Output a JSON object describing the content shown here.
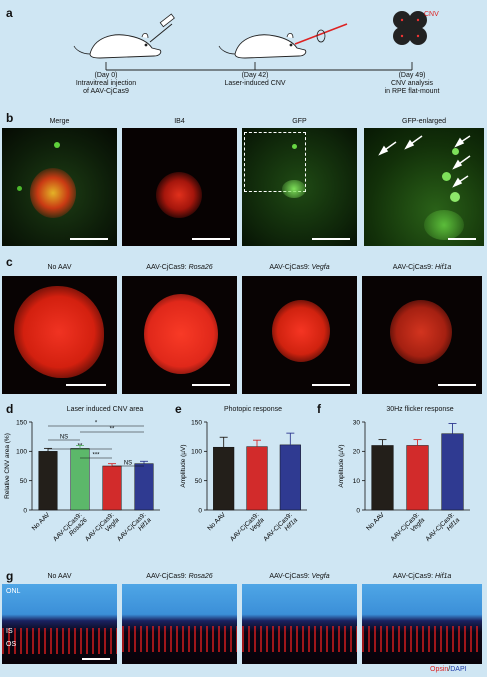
{
  "panels": {
    "a": "a",
    "b": "b",
    "c": "c",
    "d": "d",
    "e": "e",
    "f": "f",
    "g": "g"
  },
  "timeline": {
    "cnv_label": "CNV",
    "steps": [
      {
        "day": "(Day 0)",
        "line1": "Intravitreal injection",
        "line2": "of AAV-CjCas9"
      },
      {
        "day": "(Day 42)",
        "line1": "Laser-induced CNV",
        "line2": ""
      },
      {
        "day": "(Day 49)",
        "line1": "CNV analysis",
        "line2": "in RPE flat-mount"
      }
    ]
  },
  "panel_b": {
    "titles": [
      "Merge",
      "IB4",
      "GFP",
      "GFP-enlarged"
    ]
  },
  "panel_c": {
    "titles": [
      {
        "prefix": "No AAV",
        "gene": ""
      },
      {
        "prefix": "AAV-CjCas9: ",
        "gene": "Rosa26"
      },
      {
        "prefix": "AAV-CjCas9: ",
        "gene": "Vegfa"
      },
      {
        "prefix": "AAV-CjCas9: ",
        "gene": "Hif1a"
      }
    ]
  },
  "panel_g": {
    "titles": [
      {
        "prefix": "No AAV",
        "gene": ""
      },
      {
        "prefix": "AAV-CjCas9: ",
        "gene": "Rosa26"
      },
      {
        "prefix": "AAV-CjCas9: ",
        "gene": "Vegfa"
      },
      {
        "prefix": "AAV-CjCas9: ",
        "gene": "Hif1a"
      }
    ],
    "layers": [
      "ONL",
      "IS",
      "OS"
    ],
    "legend_red": "Opsin",
    "legend_sep": "/",
    "legend_blue": "DAPI"
  },
  "chart_data": [
    {
      "type": "bar",
      "title": "Laser induced CNV area",
      "ylabel": "Relative CNV area (%)",
      "ylim": [
        0,
        150
      ],
      "yticks": [
        0,
        50,
        100,
        150
      ],
      "categories": [
        "No AAV",
        "AAV-CjCas9: Rosa26",
        "AAV-CjCas9: Vegfa",
        "AAV-CjCas9: Hif1a"
      ],
      "category_lines": [
        [
          "No AAV"
        ],
        [
          "AAV-CjCas9:",
          "Rosa26"
        ],
        [
          "AAV-CjCas9:",
          "Vegfa"
        ],
        [
          "AAV-CjCas9:",
          "Hif1a"
        ]
      ],
      "values": [
        100,
        105,
        75,
        79
      ],
      "errors": [
        5,
        5,
        4,
        4
      ],
      "colors": [
        "#231f1a",
        "#5cb86a",
        "#d22b2b",
        "#2f3a91"
      ],
      "significance": [
        {
          "from": 0,
          "to": 3,
          "label": "*"
        },
        {
          "from": 1,
          "to": 3,
          "label": "**"
        },
        {
          "from": 0,
          "to": 1,
          "label": "NS"
        },
        {
          "from": 0,
          "to": 2,
          "label": "**"
        },
        {
          "from": 1,
          "to": 2,
          "label": "***"
        },
        {
          "from": 2,
          "to": 3,
          "label": "NS"
        }
      ]
    },
    {
      "type": "bar",
      "title": "Photopic response",
      "ylabel": "Amplitude (µV)",
      "ylim": [
        0,
        150
      ],
      "yticks": [
        0,
        50,
        100,
        150
      ],
      "categories": [
        "No AAV",
        "AAV-CjCas9: Vegfa",
        "AAV-CjCas9: Hif1a"
      ],
      "category_lines": [
        [
          "No AAV"
        ],
        [
          "AAV-CjCas9:",
          "Vegfa"
        ],
        [
          "AAV-CjCas9:",
          "Hif1a"
        ]
      ],
      "values": [
        107,
        108,
        111
      ],
      "errors": [
        17,
        11,
        20
      ],
      "colors": [
        "#231f1a",
        "#d22b2b",
        "#2f3a91"
      ]
    },
    {
      "type": "bar",
      "title": "30Hz flicker response",
      "ylabel": "Amplitude (µV)",
      "ylim": [
        0,
        30
      ],
      "yticks": [
        0,
        10,
        20,
        30
      ],
      "categories": [
        "No AAV",
        "AAV-CjCas9: Vegfa",
        "AAV-CjCas9: Hif1a"
      ],
      "category_lines": [
        [
          "No AAV"
        ],
        [
          "AAV-CjCas9:",
          "Vegfa"
        ],
        [
          "AAV-CjCas9:",
          "Hif1a"
        ]
      ],
      "values": [
        22,
        22,
        26
      ],
      "errors": [
        2,
        2,
        3.5
      ],
      "colors": [
        "#231f1a",
        "#d22b2b",
        "#2f3a91"
      ]
    }
  ]
}
